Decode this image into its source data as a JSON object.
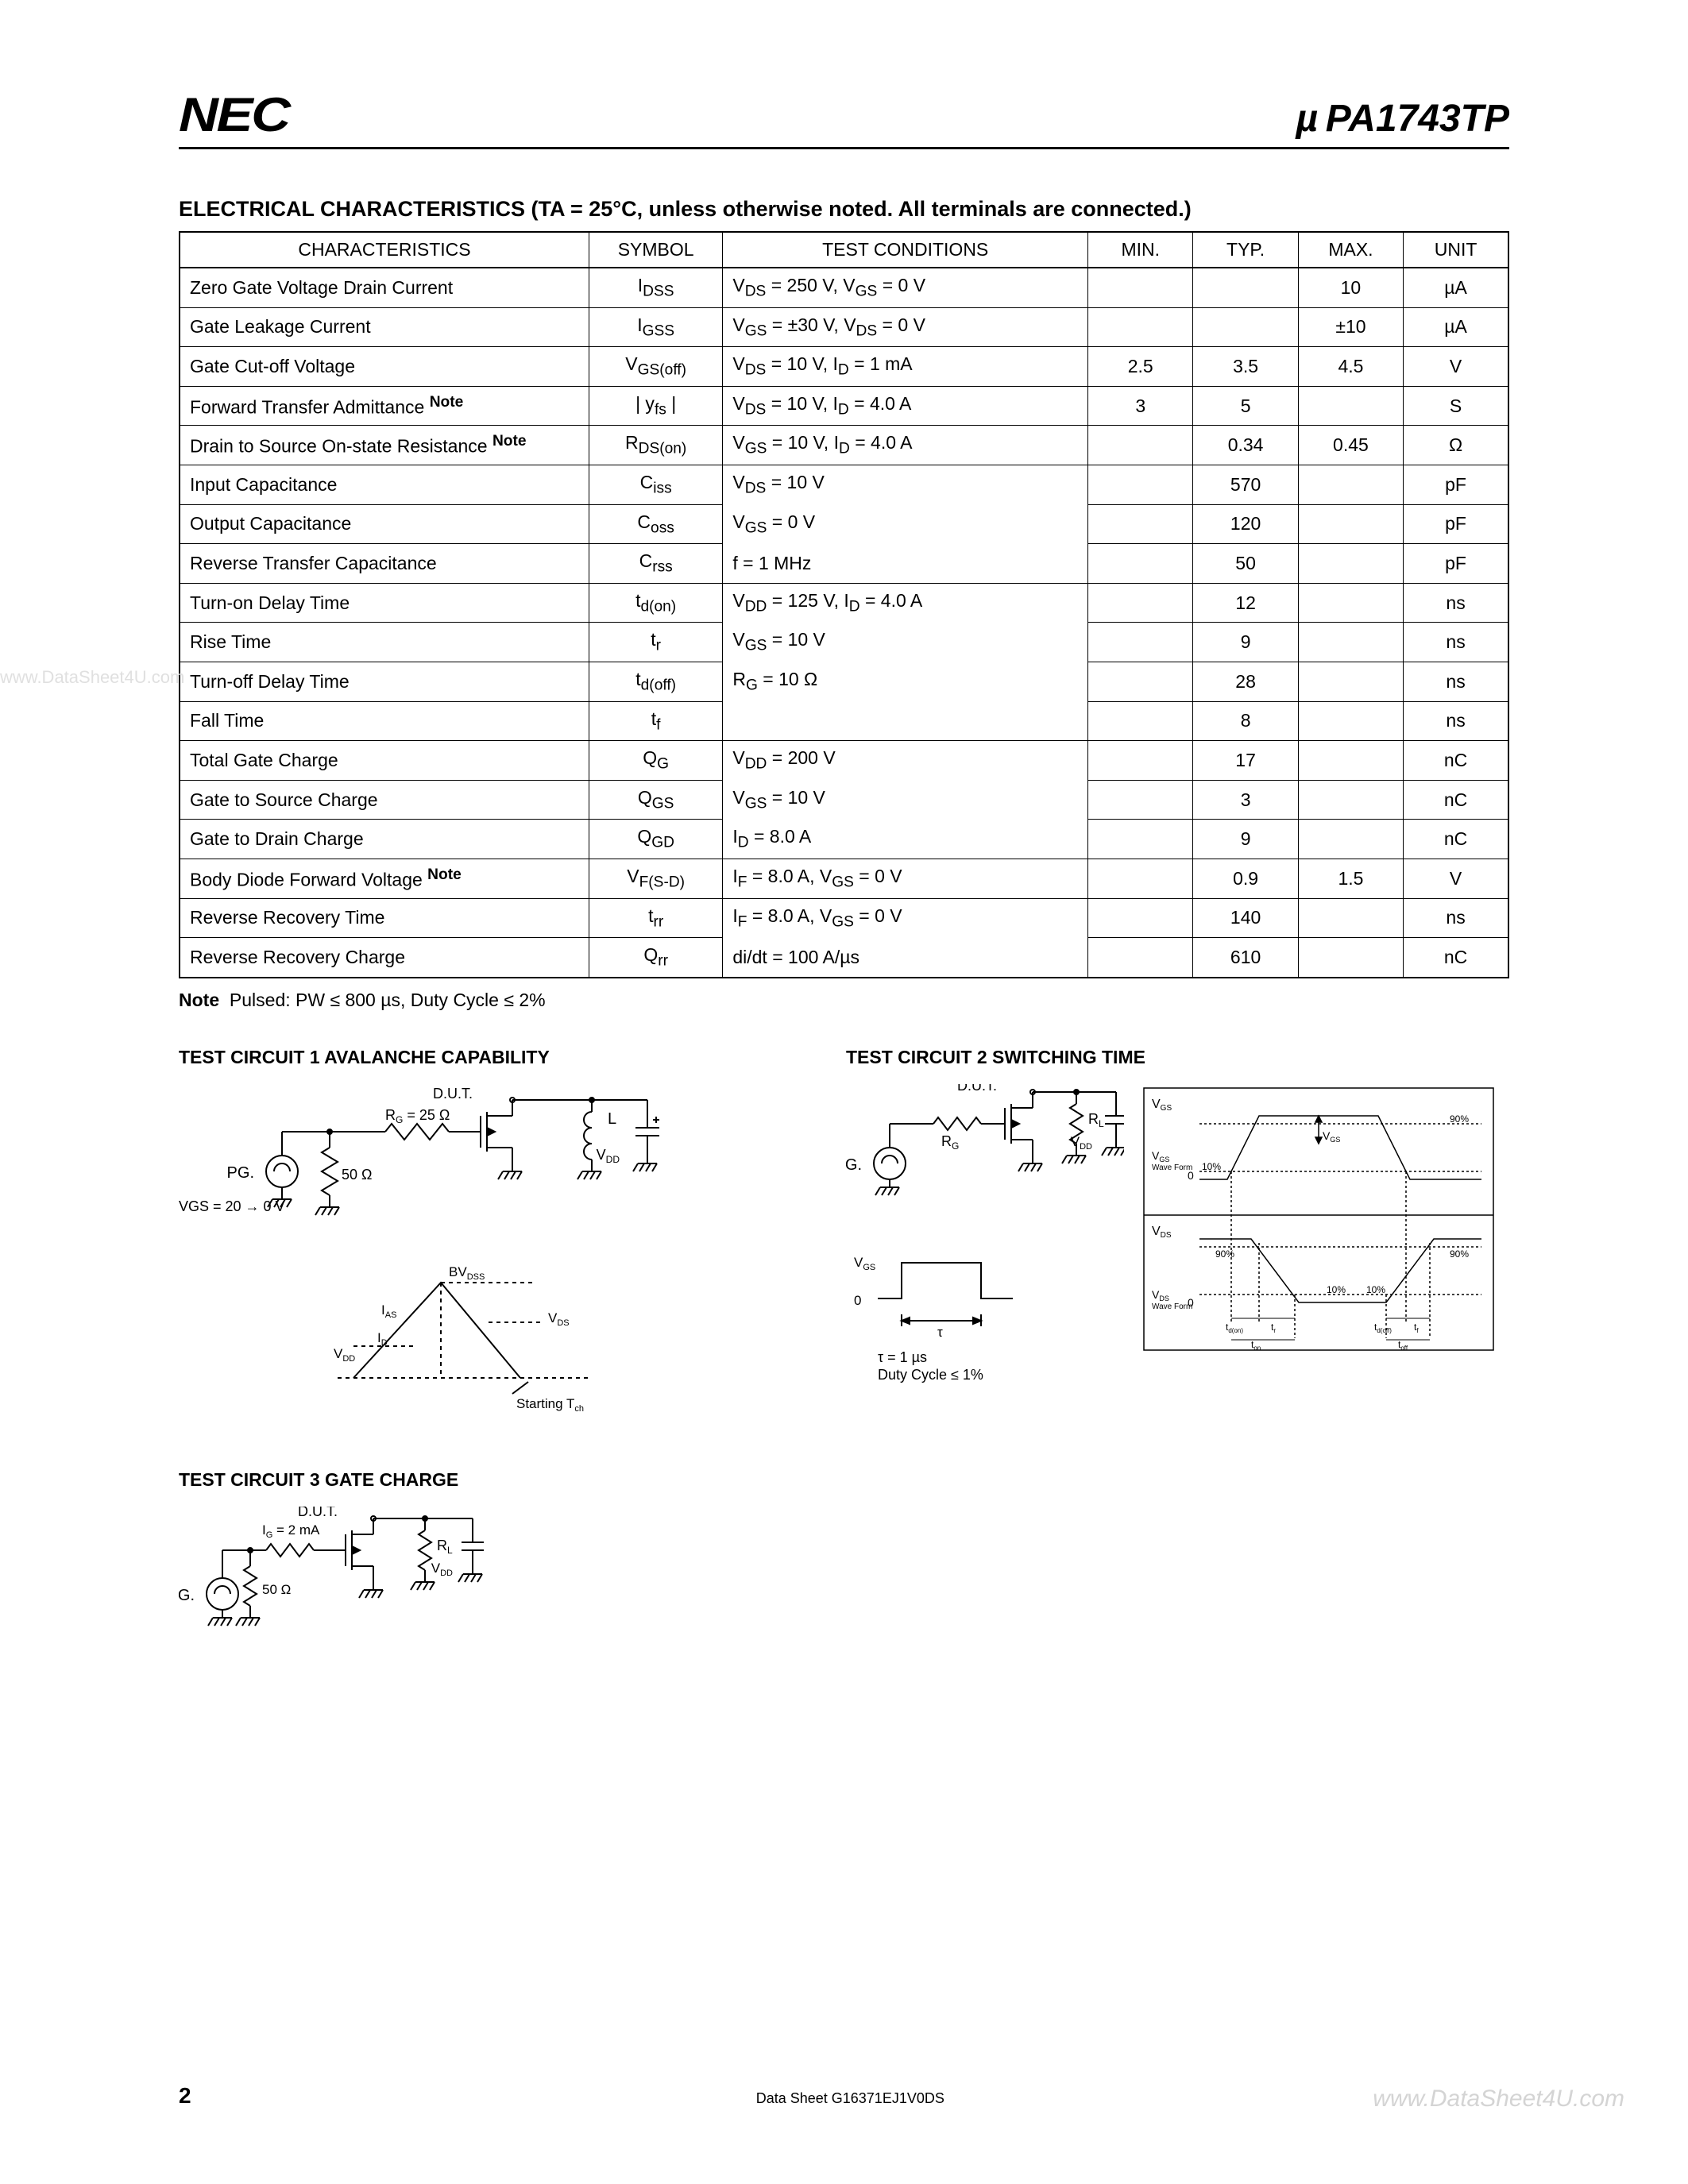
{
  "header": {
    "logo_text": "NEC",
    "part_number": "PA1743TP",
    "mu": "µ"
  },
  "section": {
    "title": "ELECTRICAL  CHARACTERISTICS",
    "conditions": "(TA = 25°C, unless otherwise noted. All terminals are connected.)"
  },
  "table": {
    "headers": {
      "char": "CHARACTERISTICS",
      "sym": "SYMBOL",
      "tc": "TEST CONDITIONS",
      "min": "MIN.",
      "typ": "TYP.",
      "max": "MAX.",
      "unit": "UNIT"
    },
    "rows": [
      {
        "char": "Zero Gate Voltage Drain Current",
        "sym": "I<sub>DSS</sub>",
        "tc": "V<sub>DS</sub> = 250 V, V<sub>GS</sub> = 0 V",
        "min": "",
        "typ": "",
        "max": "10",
        "unit": "µA",
        "tc_style": ""
      },
      {
        "char": "Gate Leakage Current",
        "sym": "I<sub>GSS</sub>",
        "tc": "V<sub>GS</sub> = ±30 V, V<sub>DS</sub> = 0 V",
        "min": "",
        "typ": "",
        "max": "±10",
        "unit": "µA",
        "tc_style": ""
      },
      {
        "char": "Gate Cut-off Voltage",
        "sym": "V<sub>GS(off)</sub>",
        "tc": "V<sub>DS</sub> = 10 V, I<sub>D</sub> = 1 mA",
        "min": "2.5",
        "typ": "3.5",
        "max": "4.5",
        "unit": "V",
        "tc_style": ""
      },
      {
        "char": "Forward Transfer Admittance <sup><b>Note</b></sup>",
        "sym": "| y<sub>fs</sub> |",
        "tc": "V<sub>DS</sub> = 10 V, I<sub>D</sub> = 4.0 A",
        "min": "3",
        "typ": "5",
        "max": "",
        "unit": "S",
        "tc_style": ""
      },
      {
        "char": "Drain to Source On-state Resistance <sup><b>Note</b></sup>",
        "sym": "R<sub>DS(on)</sub>",
        "tc": "V<sub>GS</sub> = 10 V, I<sub>D</sub> = 4.0 A",
        "min": "",
        "typ": "0.34",
        "max": "0.45",
        "unit": "Ω",
        "tc_style": ""
      },
      {
        "char": "Input Capacitance",
        "sym": "C<sub>iss</sub>",
        "tc": "V<sub>DS</sub> = 10 V",
        "min": "",
        "typ": "570",
        "max": "",
        "unit": "pF",
        "tc_style": "no-bot"
      },
      {
        "char": "Output Capacitance",
        "sym": "C<sub>oss</sub>",
        "tc": "V<sub>GS</sub> = 0 V",
        "min": "",
        "typ": "120",
        "max": "",
        "unit": "pF",
        "tc_style": "no-top no-bot"
      },
      {
        "char": "Reverse Transfer Capacitance",
        "sym": "C<sub>rss</sub>",
        "tc": "f = 1 MHz",
        "min": "",
        "typ": "50",
        "max": "",
        "unit": "pF",
        "tc_style": "no-top"
      },
      {
        "char": "Turn-on Delay Time",
        "sym": "t<sub>d(on)</sub>",
        "tc": "V<sub>DD</sub> = 125 V, I<sub>D</sub> = 4.0 A",
        "min": "",
        "typ": "12",
        "max": "",
        "unit": "ns",
        "tc_style": "no-bot"
      },
      {
        "char": "Rise Time",
        "sym": "t<sub>r</sub>",
        "tc": "V<sub>GS</sub> = 10 V",
        "min": "",
        "typ": "9",
        "max": "",
        "unit": "ns",
        "tc_style": "no-top no-bot"
      },
      {
        "char": "Turn-off Delay Time",
        "sym": "t<sub>d(off)</sub>",
        "tc": "R<sub>G</sub> = 10 Ω",
        "min": "",
        "typ": "28",
        "max": "",
        "unit": "ns",
        "tc_style": "no-top no-bot"
      },
      {
        "char": "Fall Time",
        "sym": "t<sub>f</sub>",
        "tc": "",
        "min": "",
        "typ": "8",
        "max": "",
        "unit": "ns",
        "tc_style": "no-top"
      },
      {
        "char": "Total Gate Charge",
        "sym": "Q<sub>G</sub>",
        "tc": "V<sub>DD</sub> = 200 V",
        "min": "",
        "typ": "17",
        "max": "",
        "unit": "nC",
        "tc_style": "no-bot"
      },
      {
        "char": "Gate to Source Charge",
        "sym": "Q<sub>GS</sub>",
        "tc": "V<sub>GS</sub> = 10 V",
        "min": "",
        "typ": "3",
        "max": "",
        "unit": "nC",
        "tc_style": "no-top no-bot"
      },
      {
        "char": "Gate to Drain Charge",
        "sym": "Q<sub>GD</sub>",
        "tc": "I<sub>D</sub> = 8.0 A",
        "min": "",
        "typ": "9",
        "max": "",
        "unit": "nC",
        "tc_style": "no-top"
      },
      {
        "char": "Body Diode Forward Voltage <sup><b>Note</b></sup>",
        "sym": "V<sub>F(S-D)</sub>",
        "tc": "I<sub>F</sub> = 8.0 A, V<sub>GS</sub> = 0 V",
        "min": "",
        "typ": "0.9",
        "max": "1.5",
        "unit": "V",
        "tc_style": ""
      },
      {
        "char": "Reverse Recovery Time",
        "sym": "t<sub>rr</sub>",
        "tc": "I<sub>F</sub> = 8.0 A, V<sub>GS</sub> = 0 V",
        "min": "",
        "typ": "140",
        "max": "",
        "unit": "ns",
        "tc_style": "no-bot"
      },
      {
        "char": "Reverse Recovery Charge",
        "sym": "Q<sub>rr</sub>",
        "tc": "di/dt = 100 A/µs",
        "min": "",
        "typ": "610",
        "max": "",
        "unit": "nC",
        "tc_style": "no-top"
      }
    ]
  },
  "note": {
    "label": "Note",
    "text": "Pulsed: PW ≤ 800 µs, Duty Cycle ≤ 2%"
  },
  "circuits": {
    "c1": {
      "title": "TEST CIRCUIT 1  AVALANCHE CAPABILITY",
      "dut": "D.U.T.",
      "rg": "RG = 25 Ω",
      "r50": "50 Ω",
      "pg": "PG.",
      "vgs": "VGS = 20 → 0 V",
      "L": "L",
      "vdd": "VDD",
      "bvdss": "BVDSS",
      "ias": "IAS",
      "id": "ID",
      "vds": "VDS",
      "start": "Starting Tch"
    },
    "c2": {
      "title": "TEST CIRCUIT 2  SWITCHING TIME",
      "dut": "D.U.T.",
      "pg": "PG.",
      "rg": "RG",
      "rl": "RL",
      "vdd": "VDD",
      "vgs": "VGS",
      "zero": "0",
      "tau": "τ",
      "tau_val": "τ = 1 µs",
      "duty": "Duty Cycle ≤ 1%",
      "vds": "VDS",
      "wave": "Wave Form",
      "p10": "10%",
      "p90": "90%",
      "tdon": "td(on)",
      "tr": "tr",
      "tdoff": "td(off)",
      "tf": "tf",
      "ton": "ton",
      "toff": "toff"
    },
    "c3": {
      "title": "TEST CIRCUIT 3  GATE CHARGE",
      "dut": "D.U.T.",
      "ig": "IG = 2 mA",
      "pg": "PG.",
      "r50": "50 Ω",
      "rl": "RL",
      "vdd": "VDD"
    }
  },
  "watermarks": {
    "left": "www.DataSheet4U.com",
    "right": "www.DataSheet4U.com"
  },
  "footer": {
    "page": "2",
    "code": "Data Sheet  G16371EJ1V0DS"
  }
}
